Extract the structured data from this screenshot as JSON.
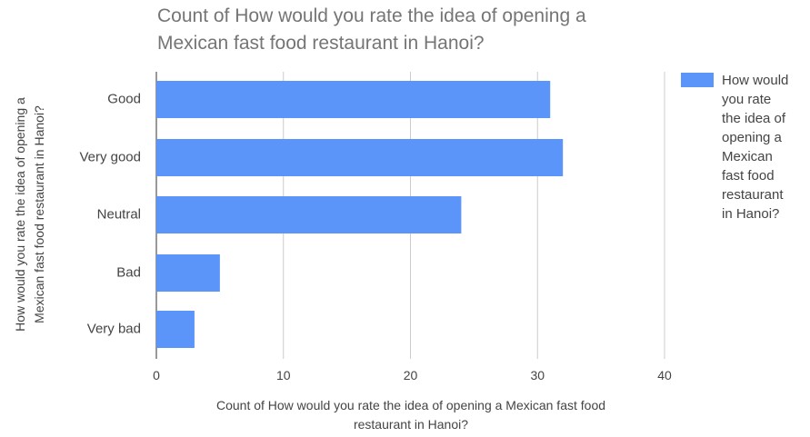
{
  "chart_data": {
    "type": "bar",
    "orientation": "horizontal",
    "title_lines": [
      "Count of How would you rate the idea of opening a",
      "Mexican fast food restaurant in Hanoi?"
    ],
    "categories": [
      "Good",
      "Very good",
      "Neutral",
      "Bad",
      "Very bad"
    ],
    "series": [
      {
        "name": "How would you rate the idea of opening a Mexican fast food restaurant in Hanoi?",
        "values": [
          31,
          32,
          24,
          5,
          3
        ],
        "color": "#5b95f9"
      }
    ],
    "xlabel_lines": [
      "Count of How would you rate the idea of opening a Mexican fast food",
      "restaurant in Hanoi?"
    ],
    "ylabel_lines": [
      "How would you rate the idea of opening a",
      "Mexican fast food restaurant in Hanoi?"
    ],
    "xlim": [
      0,
      40
    ],
    "x_ticks": [
      0,
      10,
      20,
      30,
      40
    ],
    "grid": true,
    "legend": {
      "position": "right",
      "lines": [
        "How would",
        "you rate",
        "the idea of",
        "opening a",
        "Mexican",
        "fast food",
        "restaurant",
        "in Hanoi?"
      ]
    }
  }
}
